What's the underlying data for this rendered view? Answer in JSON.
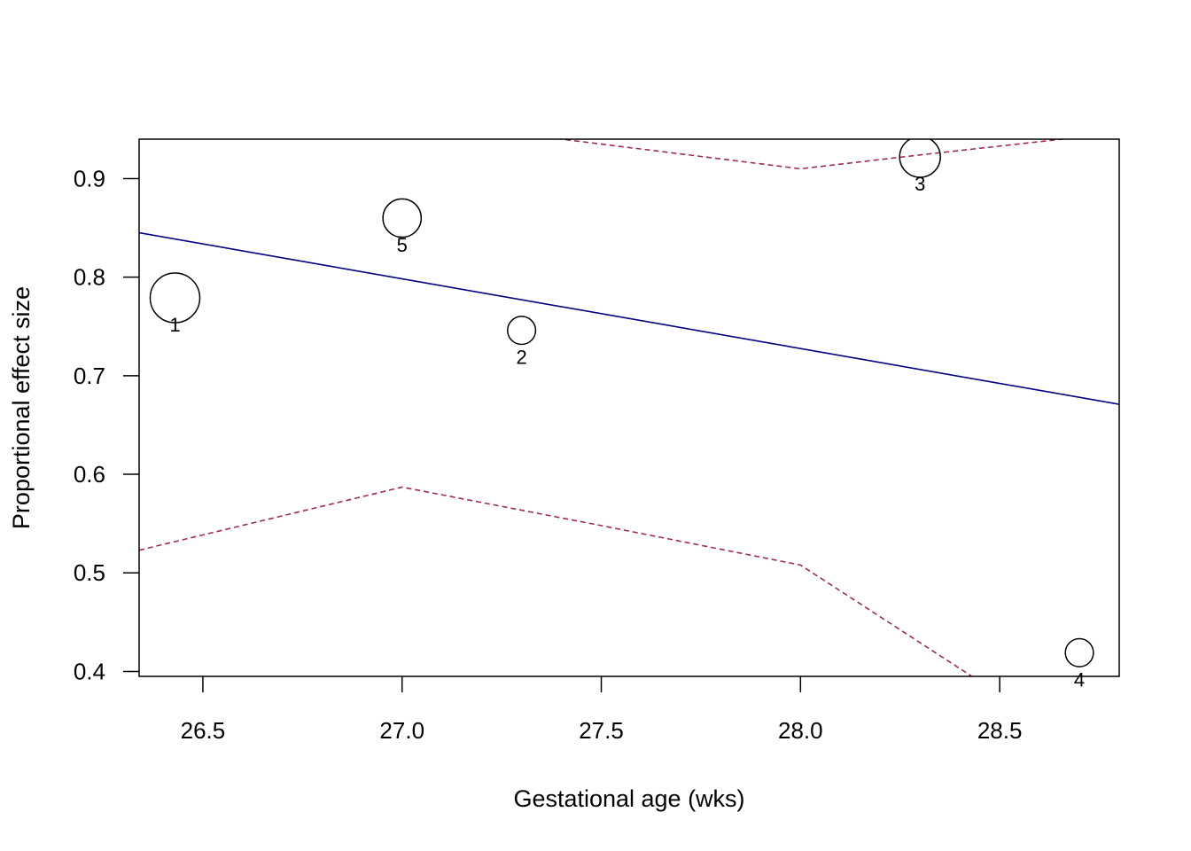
{
  "chart_data": {
    "type": "scatter",
    "title": "",
    "xlabel": "Gestational age (wks)",
    "ylabel": "Proportional effect size",
    "xlim": [
      26.34,
      28.8
    ],
    "ylim": [
      0.395,
      0.94
    ],
    "x_ticks": [
      26.5,
      27.0,
      27.5,
      28.0,
      28.5
    ],
    "x_tick_labels": [
      "26.5",
      "27.0",
      "27.5",
      "28.0",
      "28.5"
    ],
    "y_ticks": [
      0.4,
      0.5,
      0.6,
      0.7,
      0.8,
      0.9
    ],
    "y_tick_labels": [
      "0.4",
      "0.5",
      "0.6",
      "0.7",
      "0.8",
      "0.9"
    ],
    "grid": false,
    "points": [
      {
        "label": "1",
        "x": 26.43,
        "y": 0.779,
        "weight": 1.0
      },
      {
        "label": "2",
        "x": 27.3,
        "y": 0.746,
        "weight": 0.2
      },
      {
        "label": "3",
        "x": 28.3,
        "y": 0.922,
        "weight": 0.6
      },
      {
        "label": "4",
        "x": 28.7,
        "y": 0.419,
        "weight": 0.2
      },
      {
        "label": "5",
        "x": 27.0,
        "y": 0.86,
        "weight": 0.5
      }
    ],
    "fit_line": {
      "x": [
        26.34,
        28.8
      ],
      "y": [
        0.845,
        0.671
      ],
      "color": "#000080",
      "style": "solid"
    },
    "ci_upper": {
      "x": [
        27.3,
        28.0,
        28.3,
        28.7
      ],
      "y": [
        0.945,
        0.91,
        0.924,
        0.942
      ],
      "color": "#9E2A5E",
      "style": "dashed"
    },
    "ci_lower": {
      "x": [
        26.34,
        27.0,
        27.5,
        28.0,
        28.43
      ],
      "y": [
        0.523,
        0.587,
        0.548,
        0.508,
        0.395
      ],
      "color": "#9E2A5E",
      "style": "dashed"
    }
  }
}
